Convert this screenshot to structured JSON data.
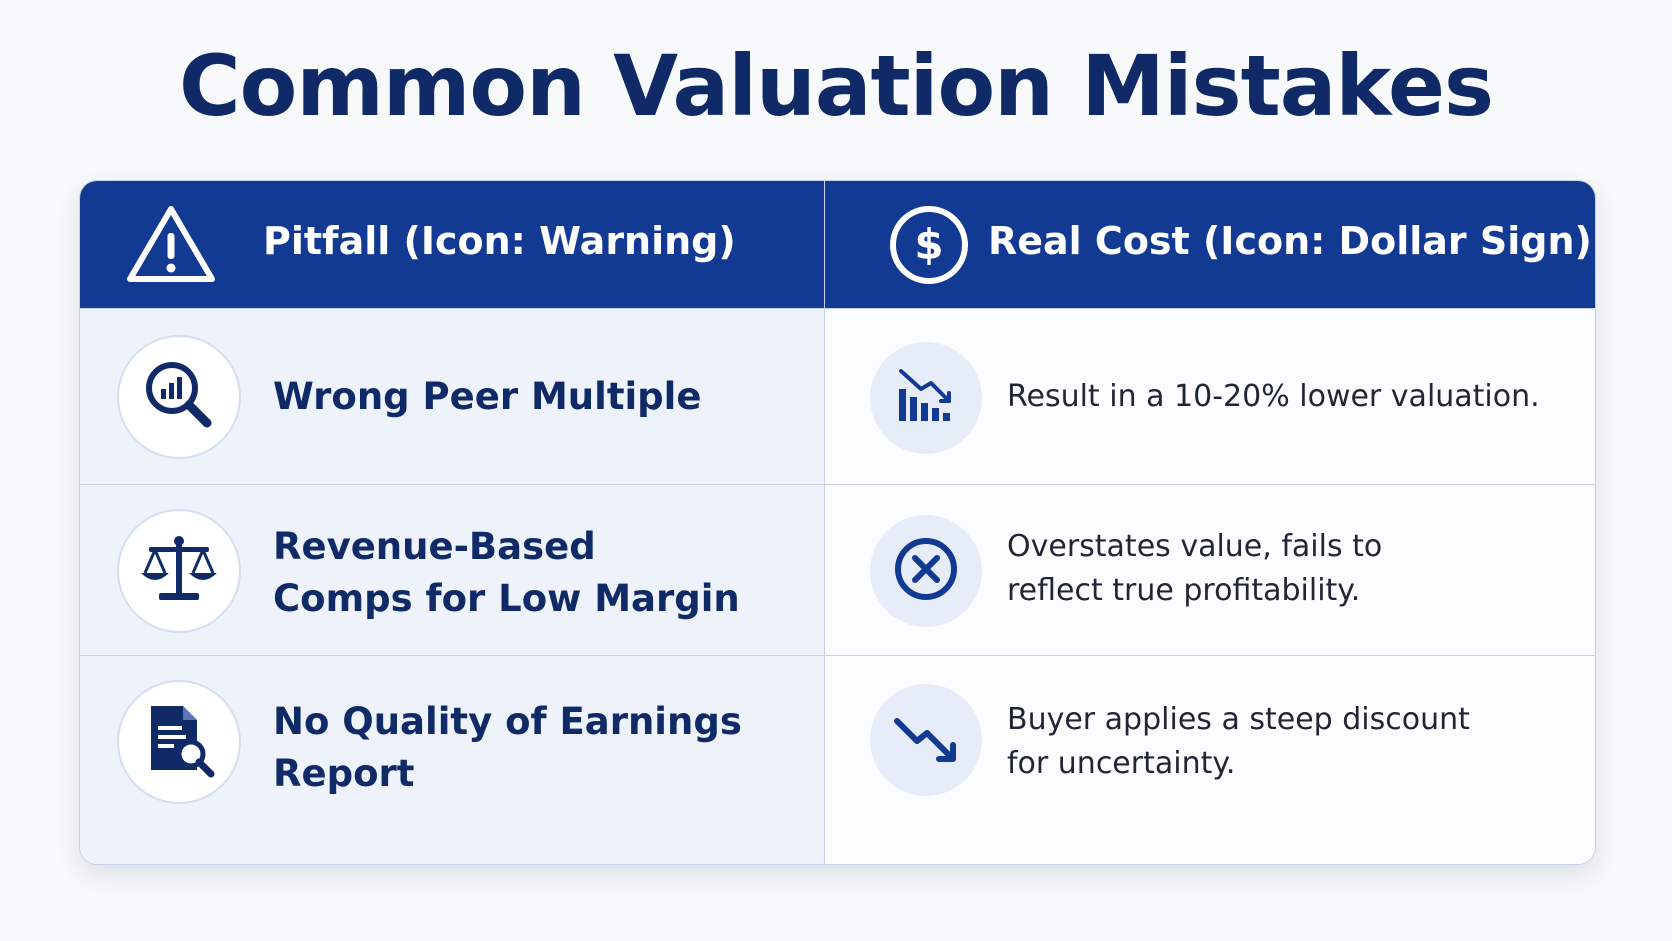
{
  "title": "Common Valuation Mistakes",
  "colors": {
    "header_bg": "#123a92",
    "title_text": "#0f2a66",
    "icon_navy": "#0f2a66",
    "row_left_bg": "#eef3fb",
    "row_right_bg": "#fbfcfe",
    "border": "#c7d2e6"
  },
  "table": {
    "headers": {
      "pitfall": {
        "label": "Pitfall (Icon: Warning)",
        "icon": "warning-icon"
      },
      "cost": {
        "label": "Real Cost (Icon: Dollar Sign)",
        "icon": "dollar-sign-icon"
      }
    },
    "rows": [
      {
        "pitfall": "Wrong Peer Multiple",
        "pitfall_icon": "magnifier-bar-chart-icon",
        "cost": "Result in a 10-20% lower valuation.",
        "cost_icon": "declining-bar-chart-icon"
      },
      {
        "pitfall": "Revenue-Based Comps for Low Margin",
        "pitfall_icon": "balance-scale-icon",
        "cost": "Overstates value, fails to reflect true profitability.",
        "cost_icon": "x-circle-icon"
      },
      {
        "pitfall": "No Quality of Earnings Report",
        "pitfall_icon": "document-search-icon",
        "cost": "Buyer applies a steep discount for uncertainty.",
        "cost_icon": "trend-down-arrow-icon"
      }
    ]
  }
}
